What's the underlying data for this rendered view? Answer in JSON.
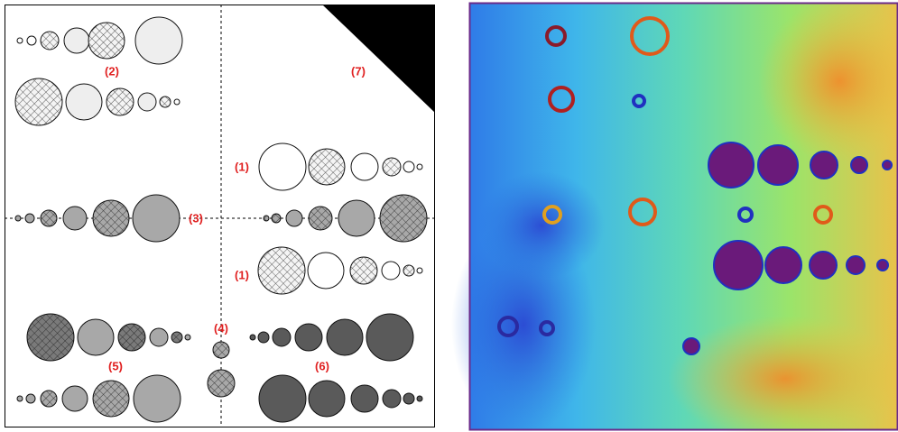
{
  "labels": [
    "(2)",
    "(7)",
    "(1)",
    "(3)",
    "(1)",
    "(4)",
    "(5)",
    "(6)"
  ]
}
